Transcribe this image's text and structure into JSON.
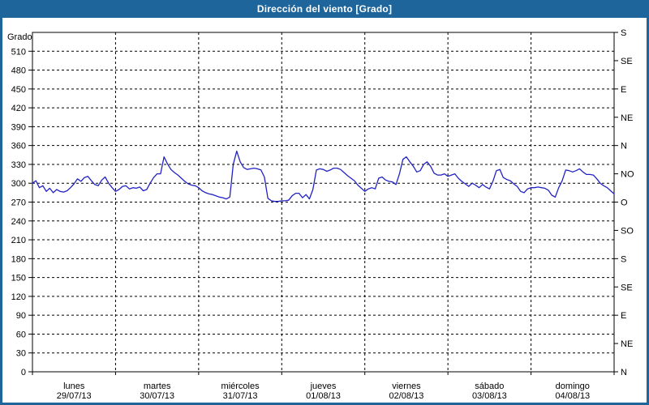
{
  "window": {
    "title": "Dirección del viento [Grado]"
  },
  "colors": {
    "titlebar_bg": "#1d659b",
    "window_border": "#1d659b",
    "plot_background": "#ffffff",
    "plot_border": "#000000",
    "grid": "#000000",
    "line": "#2222c4",
    "text": "#000000",
    "title_text": "#ffffff"
  },
  "chart_data": {
    "type": "line",
    "title": "Dirección del viento [Grado]",
    "ylabel": "Grado",
    "xlabel": "",
    "ylim": [
      0,
      540
    ],
    "grid": "dashed",
    "legend": "none",
    "y_ticks": [
      0,
      30,
      60,
      90,
      120,
      150,
      180,
      210,
      240,
      270,
      300,
      330,
      360,
      390,
      420,
      450,
      480,
      510
    ],
    "right_axis_ticks": [
      {
        "value": 0,
        "label": "N"
      },
      {
        "value": 45,
        "label": "NE"
      },
      {
        "value": 90,
        "label": "E"
      },
      {
        "value": 135,
        "label": "SE"
      },
      {
        "value": 180,
        "label": "S"
      },
      {
        "value": 225,
        "label": "SO"
      },
      {
        "value": 270,
        "label": "O"
      },
      {
        "value": 315,
        "label": "NO"
      },
      {
        "value": 360,
        "label": "N"
      },
      {
        "value": 405,
        "label": "NE"
      },
      {
        "value": 450,
        "label": "E"
      },
      {
        "value": 495,
        "label": "SE"
      },
      {
        "value": 540,
        "label": "S"
      }
    ],
    "x_axis_days": [
      {
        "name": "lunes",
        "date": "29/07/13"
      },
      {
        "name": "martes",
        "date": "30/07/13"
      },
      {
        "name": "miércoles",
        "date": "31/07/13"
      },
      {
        "name": "jueves",
        "date": "01/08/13"
      },
      {
        "name": "viernes",
        "date": "02/08/13"
      },
      {
        "name": "sábado",
        "date": "03/08/13"
      },
      {
        "name": "domingo",
        "date": "04/08/13"
      }
    ],
    "series": [
      {
        "name": "Dirección del viento",
        "unit": "Grado",
        "x_unit": "hours_from_start",
        "x_start": 0,
        "x_step": 1,
        "values": [
          300,
          304,
          293,
          296,
          287,
          292,
          285,
          290,
          287,
          286,
          288,
          293,
          299,
          307,
          303,
          309,
          311,
          304,
          298,
          296,
          305,
          310,
          300,
          293,
          287,
          290,
          295,
          296,
          291,
          293,
          292,
          294,
          288,
          290,
          300,
          309,
          315,
          315,
          342,
          331,
          322,
          317,
          313,
          308,
          303,
          299,
          297,
          296,
          293,
          288,
          285,
          283,
          282,
          280,
          278,
          277,
          275,
          278,
          330,
          351,
          334,
          325,
          322,
          323,
          324,
          323,
          321,
          310,
          276,
          272,
          271,
          271,
          272,
          272,
          273,
          280,
          284,
          284,
          277,
          282,
          275,
          290,
          321,
          323,
          322,
          319,
          321,
          324,
          324,
          322,
          317,
          312,
          308,
          304,
          297,
          292,
          287,
          291,
          293,
          291,
          308,
          310,
          305,
          303,
          302,
          298,
          315,
          338,
          342,
          334,
          327,
          318,
          320,
          330,
          334,
          327,
          316,
          313,
          313,
          315,
          311,
          313,
          315,
          308,
          303,
          299,
          295,
          300,
          297,
          293,
          298,
          294,
          291,
          303,
          320,
          322,
          309,
          306,
          304,
          299,
          295,
          287,
          285,
          291,
          293,
          293,
          294,
          293,
          292,
          289,
          281,
          278,
          293,
          304,
          321,
          320,
          318,
          320,
          323,
          318,
          314,
          314,
          313,
          307,
          300,
          296,
          293,
          288,
          283
        ]
      }
    ]
  }
}
